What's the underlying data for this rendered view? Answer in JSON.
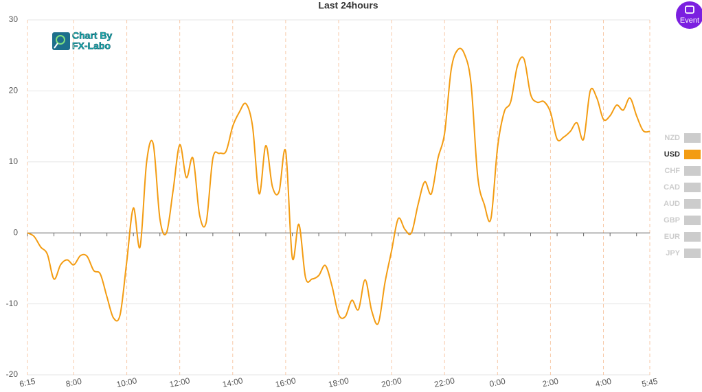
{
  "chart_data": {
    "type": "line",
    "title": "Last 24hours",
    "categories": [
      "6:15",
      null,
      null,
      null,
      null,
      null,
      null,
      "8:00",
      null,
      null,
      null,
      null,
      null,
      null,
      null,
      "10:00",
      null,
      null,
      null,
      null,
      null,
      null,
      null,
      "12:00",
      null,
      null,
      null,
      null,
      null,
      null,
      null,
      "14:00",
      null,
      null,
      null,
      null,
      null,
      null,
      null,
      "16:00",
      null,
      null,
      null,
      null,
      null,
      null,
      null,
      "18:00",
      null,
      null,
      null,
      null,
      null,
      null,
      null,
      "20:00",
      null,
      null,
      null,
      null,
      null,
      null,
      null,
      "22:00",
      null,
      null,
      null,
      null,
      null,
      null,
      null,
      "0:00",
      null,
      null,
      null,
      null,
      null,
      null,
      null,
      "2:00",
      null,
      null,
      null,
      null,
      null,
      null,
      null,
      "4:00",
      null,
      null,
      null,
      null,
      null,
      null,
      "5:45"
    ],
    "series": [
      {
        "color": "#f39c12",
        "values": [
          0,
          -0.5,
          -2,
          -3,
          -6.5,
          -4.5,
          -3.8,
          -4.5,
          -3.2,
          -3.3,
          -5.3,
          -5.8,
          -9,
          -12,
          -11.5,
          -4,
          3.5,
          -2,
          10,
          12.5,
          2,
          0,
          6,
          12.4,
          7.8,
          10.5,
          2.5,
          1.5,
          10.5,
          11.2,
          11.5,
          15,
          17,
          18.2,
          15,
          5.5,
          12.3,
          6.5,
          5.8,
          11.5,
          -3.5,
          1.2,
          -6.3,
          -6.5,
          -6,
          -4.6,
          -7.5,
          -11.5,
          -11.8,
          -9.5,
          -10.8,
          -6.6,
          -11,
          -12.7,
          -7,
          -2.5,
          2,
          0.5,
          0,
          4,
          7.2,
          5.5,
          10.5,
          14,
          23,
          25.8,
          25.2,
          21,
          8,
          4,
          2,
          12,
          17,
          18.5,
          23.5,
          24.5,
          19.5,
          18.4,
          18.5,
          17,
          13.2,
          13.5,
          14.3,
          15.5,
          13.2,
          20,
          19,
          16,
          16.5,
          18,
          17.3,
          19,
          16.5,
          14.4,
          14.3
        ]
      }
    ],
    "ylim": [
      -20,
      30
    ],
    "yticks": [
      -20,
      -10,
      0,
      10,
      20,
      30
    ],
    "grid": true,
    "legend": {
      "items": [
        "NZD",
        "USD",
        "CHF",
        "CAD",
        "AUD",
        "GBP",
        "EUR",
        "JPY"
      ],
      "active_index": 1,
      "inactive_color": "#cccccc",
      "position": "right"
    },
    "watermark": [
      "Chart By",
      "FX-Labo"
    ],
    "button": "Event"
  }
}
